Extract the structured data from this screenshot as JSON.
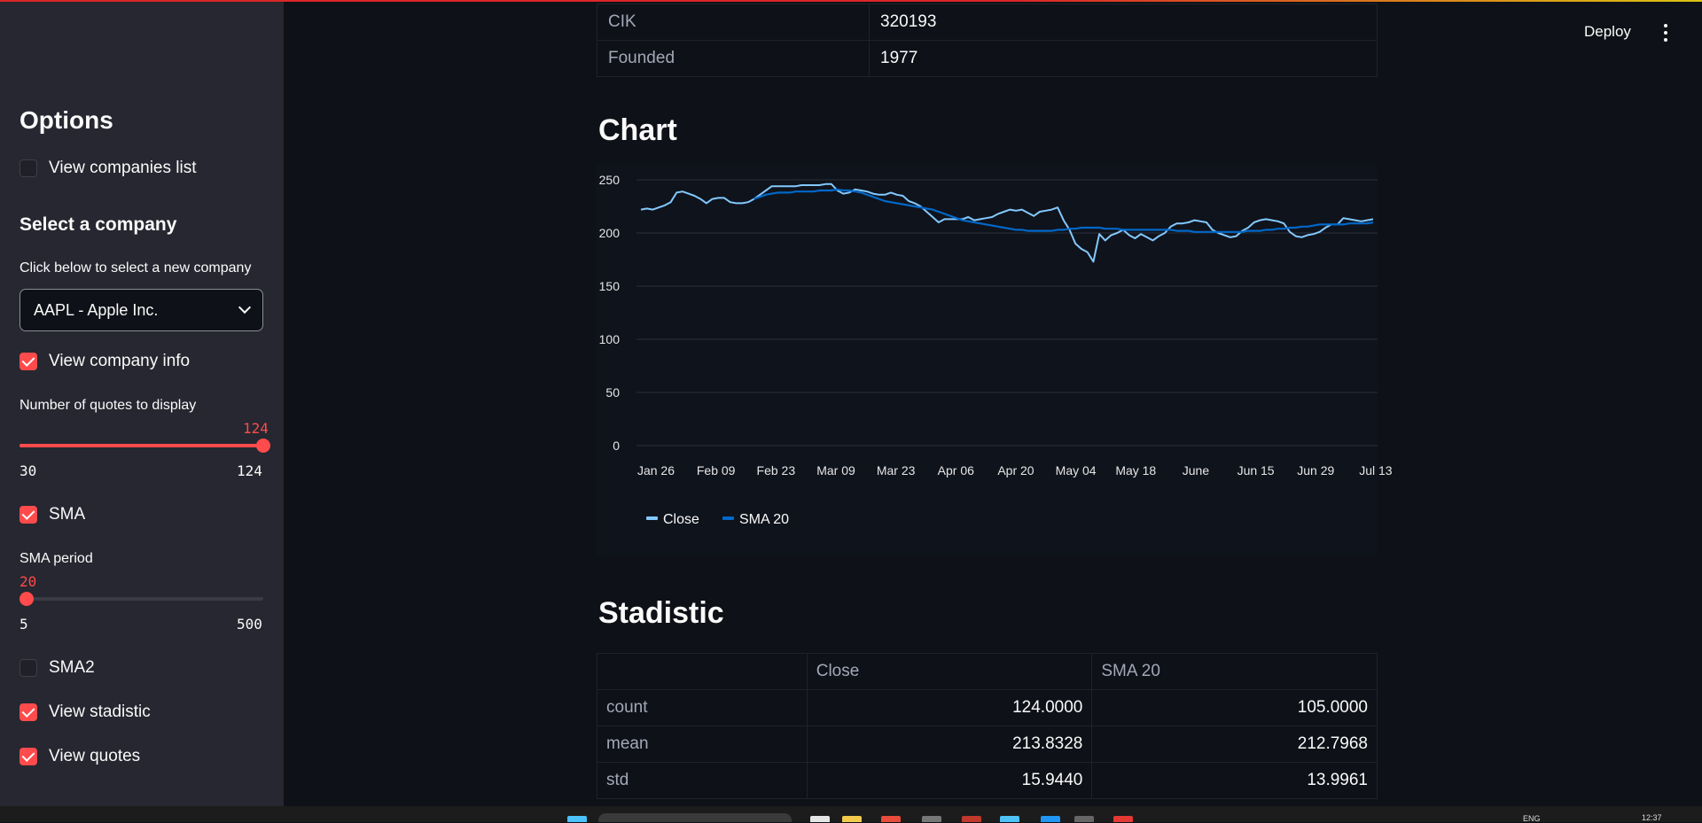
{
  "header": {
    "deploy_label": "Deploy",
    "menu_icon": "kebab-menu-icon"
  },
  "sidebar": {
    "title": "Options",
    "view_companies_list": {
      "label": "View companies list",
      "checked": false
    },
    "select_heading": "Select a company",
    "select_label": "Click below to select a new company",
    "select_value": "AAPL - Apple Inc.",
    "view_company_info": {
      "label": "View company info",
      "checked": true
    },
    "quotes_slider": {
      "label": "Number of quotes to display",
      "value": "124",
      "min": "30",
      "max": "124",
      "fraction": 1.0
    },
    "sma": {
      "label": "SMA",
      "checked": true
    },
    "sma_slider": {
      "label": "SMA period",
      "value": "20",
      "min": "5",
      "max": "500",
      "fraction": 0.0
    },
    "sma2": {
      "label": "SMA2",
      "checked": false
    },
    "view_stadistic": {
      "label": "View stadistic",
      "checked": true
    },
    "view_quotes": {
      "label": "View quotes",
      "checked": true
    }
  },
  "company_info": {
    "rows": [
      {
        "key": "CIK",
        "value": "320193"
      },
      {
        "key": "Founded",
        "value": "1977"
      }
    ]
  },
  "chart_section": {
    "title": "Chart"
  },
  "chart_data": {
    "type": "line",
    "x_ticks": [
      "Jan 26",
      "Feb 09",
      "Feb 23",
      "Mar 09",
      "Mar 23",
      "Apr 06",
      "Apr 20",
      "May 04",
      "May 18",
      "June",
      "Jun 15",
      "Jun 29",
      "Jul 13"
    ],
    "y_ticks": [
      "0",
      "50",
      "100",
      "150",
      "200",
      "250"
    ],
    "ylim": [
      0,
      250
    ],
    "series": [
      {
        "name": "Close",
        "color": "#83c9ff",
        "values": [
          222,
          223,
          222,
          224,
          226,
          229,
          238,
          239,
          237,
          235,
          232,
          228,
          232,
          233,
          233,
          229,
          228,
          228,
          229,
          232,
          236,
          240,
          244,
          244,
          244,
          244,
          244,
          245,
          245,
          245,
          245,
          246,
          246,
          240,
          237,
          238,
          241,
          240,
          239,
          237,
          236,
          236,
          238,
          236,
          235,
          230,
          228,
          225,
          220,
          215,
          210,
          213,
          213,
          213,
          213,
          215,
          212,
          213,
          214,
          215,
          218,
          220,
          222,
          221,
          222,
          219,
          216,
          220,
          221,
          222,
          224,
          212,
          203,
          190,
          185,
          182,
          173,
          199,
          193,
          198,
          200,
          203,
          198,
          195,
          199,
          196,
          193,
          197,
          200,
          206,
          209,
          209,
          210,
          212,
          211,
          210,
          203,
          200,
          198,
          196,
          197,
          202,
          205,
          210,
          212,
          213,
          212,
          211,
          209,
          201,
          197,
          196,
          198,
          199,
          201,
          205,
          208,
          208,
          214,
          213,
          212,
          211,
          212,
          213
        ]
      },
      {
        "name": "SMA 20",
        "color": "#0068c9",
        "start_index": 19,
        "values": [
          232,
          234,
          236,
          237,
          238,
          238,
          238,
          239,
          239,
          239,
          239,
          240,
          240,
          240,
          241,
          240,
          240,
          239,
          238,
          236,
          234,
          232,
          230,
          229,
          228,
          227,
          226,
          225,
          224,
          223,
          222,
          220,
          218,
          216,
          214,
          212,
          211,
          210,
          209,
          208,
          207,
          206,
          205,
          204,
          203,
          203,
          202,
          202,
          202,
          202,
          202,
          203,
          203,
          204,
          204,
          205,
          205,
          205,
          205,
          204,
          204,
          204,
          203,
          203,
          203,
          203,
          203,
          203,
          203,
          203,
          203,
          202,
          202,
          202,
          201,
          201,
          201,
          201,
          201,
          201,
          201,
          201,
          201,
          202,
          202,
          202,
          203,
          203,
          204,
          204,
          205,
          205,
          206,
          206,
          207,
          208,
          208,
          208,
          208,
          208,
          209,
          209,
          209,
          209,
          210
        ]
      }
    ]
  },
  "stats_section": {
    "title": "Stadistic",
    "columns": [
      "",
      "Close",
      "SMA 20"
    ],
    "rows": [
      {
        "stat": "count",
        "close": "124.0000",
        "sma": "105.0000"
      },
      {
        "stat": "mean",
        "close": "213.8328",
        "sma": "212.7968"
      },
      {
        "stat": "std",
        "close": "15.9440",
        "sma": "13.9961"
      }
    ]
  },
  "taskbar": {
    "lang": "ENG",
    "time": "12:37"
  }
}
